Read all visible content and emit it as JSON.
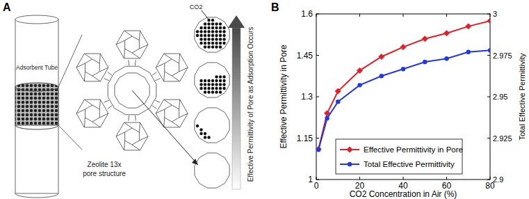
{
  "figure": {
    "panel_labels": [
      "A",
      "B"
    ]
  },
  "diagram": {
    "tube_label": "Adsorbent Tube",
    "structure_label": [
      "Zeolite 13x",
      "pore structure"
    ],
    "molecule_label": "CO2",
    "arrow_label": "Effective Permittivity of Pore as Adsorption Occurs"
  },
  "chart_data": {
    "type": "line",
    "x_label": "CO2 Concentration in Air (%)",
    "y_label": "Effective Permittivity in Pore",
    "y2_label": "Total Effective Permittivity",
    "x": [
      1,
      5,
      10,
      20,
      30,
      40,
      50,
      60,
      70,
      80
    ],
    "series": [
      {
        "name": "Effective Permittivity in Pore",
        "color": "#e3202a",
        "marker": "diamond",
        "line_style": "solid",
        "values": [
          1.11,
          1.24,
          1.32,
          1.395,
          1.445,
          1.48,
          1.51,
          1.53,
          1.555,
          1.575
        ]
      },
      {
        "name": "Total Effective Permittivity",
        "color": "#2238e0",
        "marker": "circle",
        "line_style": "solid",
        "axis": "y2",
        "values": [
          2.918,
          2.937,
          2.947,
          2.957,
          2.9625,
          2.9667,
          2.971,
          2.973,
          2.977,
          2.978
        ]
      }
    ],
    "xlim": [
      0,
      80
    ],
    "xticks": [
      0,
      20,
      40,
      60,
      80
    ],
    "ylim": [
      1,
      1.6
    ],
    "yticks": [
      1,
      1.15,
      1.3,
      1.45,
      1.6
    ],
    "y2lim": [
      2.9,
      3
    ],
    "y2ticks": [
      2.9,
      2.925,
      2.95,
      2.975,
      3
    ],
    "grid": false,
    "legend": "lower left"
  }
}
